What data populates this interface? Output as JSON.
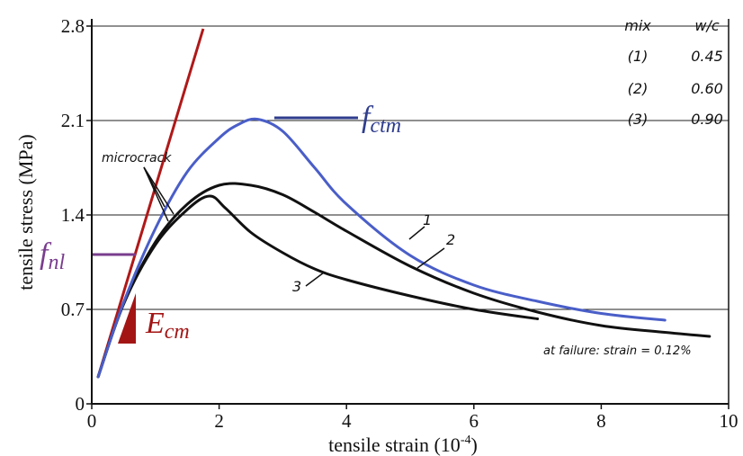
{
  "chart_data": {
    "type": "line",
    "xlabel": "tensile strain (10",
    "xlabel_sup": "-4",
    "xlabel_close": ")",
    "ylabel": "tensile stress (MPa)",
    "xlim": [
      0,
      10
    ],
    "ylim": [
      0,
      2.8
    ],
    "xticks": [
      0,
      2,
      4,
      6,
      8,
      10
    ],
    "yticks": [
      0,
      0.7,
      1.4,
      2.1,
      2.8
    ],
    "ytick_labels": [
      "0",
      "0.7",
      "1.4",
      "2.1",
      "2.8"
    ],
    "grid": "horizontal",
    "series": [
      {
        "name": "1",
        "color": "#4a5ec8",
        "x": [
          0.1,
          0.5,
          1.0,
          1.5,
          2.0,
          2.3,
          2.6,
          3.0,
          3.5,
          4.0,
          5.0,
          6.0,
          7.0,
          8.0,
          9.0
        ],
        "y": [
          0.2,
          0.75,
          1.3,
          1.72,
          1.97,
          2.07,
          2.11,
          2.02,
          1.75,
          1.48,
          1.1,
          0.88,
          0.76,
          0.67,
          0.62
        ]
      },
      {
        "name": "2",
        "color": "#111111",
        "x": [
          0.1,
          0.5,
          1.0,
          1.5,
          2.0,
          2.5,
          3.0,
          3.5,
          4.0,
          5.0,
          6.0,
          7.0,
          8.0,
          9.0,
          9.7
        ],
        "y": [
          0.2,
          0.74,
          1.2,
          1.48,
          1.62,
          1.62,
          1.55,
          1.42,
          1.28,
          1.02,
          0.82,
          0.68,
          0.58,
          0.53,
          0.5
        ]
      },
      {
        "name": "3",
        "color": "#111111",
        "x": [
          0.1,
          0.5,
          1.0,
          1.5,
          1.85,
          2.1,
          2.5,
          3.0,
          3.5,
          4.0,
          5.0,
          6.0,
          7.0
        ],
        "y": [
          0.2,
          0.74,
          1.18,
          1.44,
          1.54,
          1.45,
          1.27,
          1.12,
          1.0,
          0.92,
          0.8,
          0.7,
          0.63
        ]
      }
    ],
    "tangent": {
      "color": "#b01818",
      "x": [
        0.1,
        1.75
      ],
      "y": [
        0.2,
        2.78
      ]
    },
    "table": {
      "headers": [
        "mix",
        "w/c"
      ],
      "rows": [
        [
          "(1)",
          "0.45"
        ],
        [
          "(2)",
          "0.60"
        ],
        [
          "(3)",
          "0.90"
        ]
      ]
    },
    "annotations": {
      "microcrack": "microcrack",
      "failure": "at failure: strain = 0.12%",
      "curve_labels": [
        "1",
        "2",
        "3"
      ],
      "fctm_main": "f",
      "fctm_sub": "ctm",
      "fnl_main": "f",
      "fnl_sub": "nl",
      "ecm_main": "E",
      "ecm_sub": "cm",
      "fctm_color": "#2f3d8e",
      "fnl_color": "#7a3d8e",
      "ecm_color": "#a31515"
    }
  }
}
